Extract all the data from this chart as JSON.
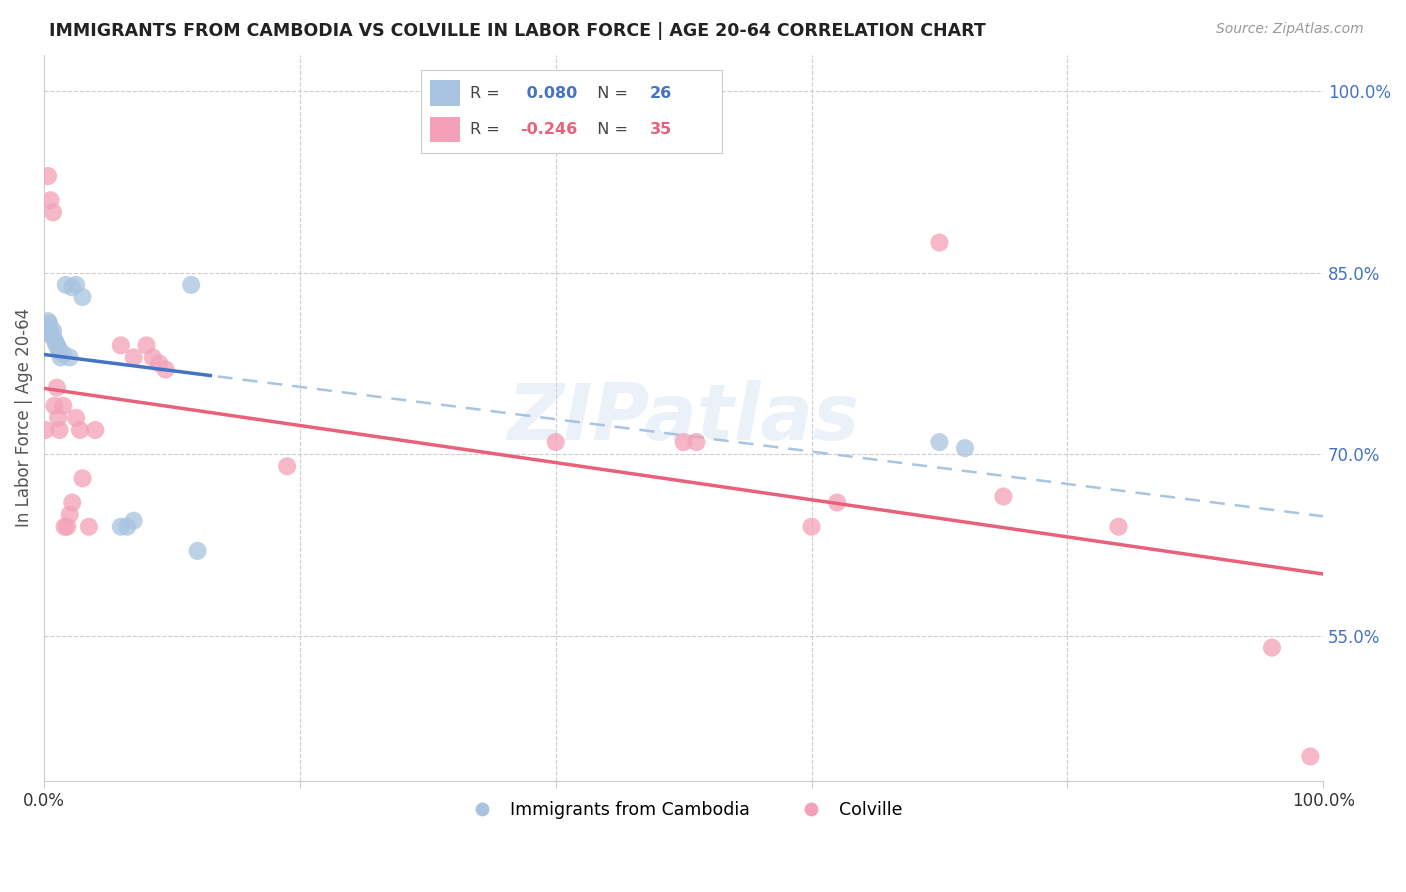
{
  "title": "IMMIGRANTS FROM CAMBODIA VS COLVILLE IN LABOR FORCE | AGE 20-64 CORRELATION CHART",
  "source": "Source: ZipAtlas.com",
  "ylabel": "In Labor Force | Age 20-64",
  "r_cambodia": 0.08,
  "n_cambodia": 26,
  "r_colville": -0.246,
  "n_colville": 35,
  "legend_entries": [
    "Immigrants from Cambodia",
    "Colville"
  ],
  "color_cambodia": "#a8c4e0",
  "color_colville": "#f4a0b8",
  "trend_color_cambodia_solid": "#4472C4",
  "trend_color_cambodia_dashed": "#a8c4e0",
  "trend_color_colville": "#E8607A",
  "xlim": [
    0.0,
    1.0
  ],
  "ylim": [
    0.43,
    1.03
  ],
  "right_yticks": [
    0.55,
    0.7,
    0.85,
    1.0
  ],
  "right_yticklabels": [
    "55.0%",
    "70.0%",
    "85.0%",
    "100.0%"
  ],
  "background_color": "#ffffff",
  "watermark": "ZIPatlas",
  "cambodia_x": [
    0.001,
    0.002,
    0.003,
    0.004,
    0.005,
    0.006,
    0.007,
    0.008,
    0.009,
    0.01,
    0.011,
    0.012,
    0.013,
    0.015,
    0.017,
    0.02,
    0.022,
    0.025,
    0.03,
    0.06,
    0.065,
    0.07,
    0.12,
    0.7,
    0.72,
    0.115
  ],
  "cambodia_y": [
    0.8,
    0.805,
    0.81,
    0.808,
    0.8,
    0.8,
    0.802,
    0.795,
    0.792,
    0.79,
    0.788,
    0.785,
    0.78,
    0.783,
    0.84,
    0.78,
    0.838,
    0.84,
    0.83,
    0.64,
    0.64,
    0.645,
    0.62,
    0.71,
    0.705,
    0.84
  ],
  "colville_x": [
    0.001,
    0.003,
    0.005,
    0.007,
    0.008,
    0.01,
    0.011,
    0.012,
    0.015,
    0.016,
    0.018,
    0.02,
    0.022,
    0.025,
    0.028,
    0.03,
    0.035,
    0.04,
    0.06,
    0.07,
    0.08,
    0.085,
    0.09,
    0.095,
    0.19,
    0.4,
    0.5,
    0.51,
    0.6,
    0.62,
    0.7,
    0.75,
    0.84,
    0.96,
    0.99
  ],
  "colville_y": [
    0.72,
    0.93,
    0.91,
    0.9,
    0.74,
    0.755,
    0.73,
    0.72,
    0.74,
    0.64,
    0.64,
    0.65,
    0.66,
    0.73,
    0.72,
    0.68,
    0.64,
    0.72,
    0.79,
    0.78,
    0.79,
    0.78,
    0.775,
    0.77,
    0.69,
    0.71,
    0.71,
    0.71,
    0.64,
    0.66,
    0.875,
    0.665,
    0.64,
    0.54,
    0.45
  ]
}
